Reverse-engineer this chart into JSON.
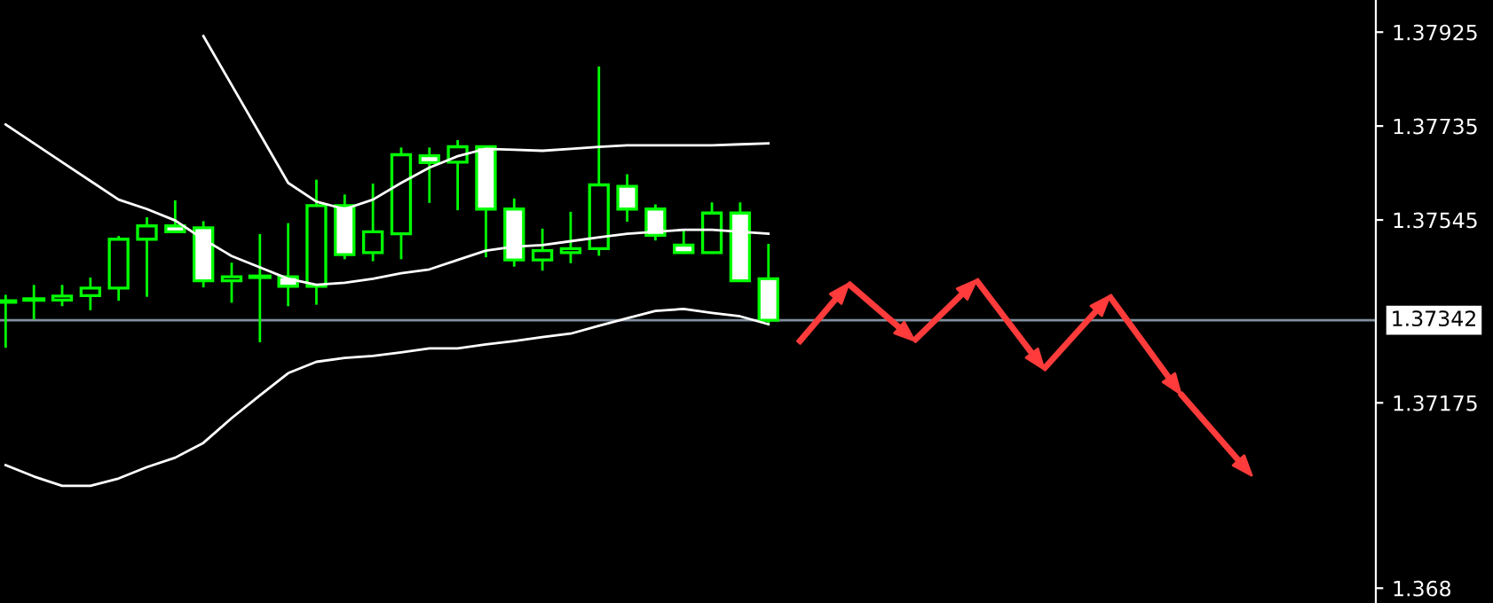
{
  "chart_data": {
    "type": "candlestick",
    "categories": [
      null,
      null,
      null,
      null,
      null,
      null,
      null,
      null,
      null,
      null,
      null,
      null,
      null,
      null,
      null,
      null,
      null,
      null,
      null,
      null,
      null,
      null,
      null,
      null,
      null,
      null,
      null,
      null
    ],
    "color": "#00ff00",
    "colors": [
      "#00ff00",
      "#00ff00",
      "#000000",
      "#000000",
      "#000000",
      "#000000",
      "#ffffff",
      "#ffffff",
      "#000000",
      "#00ff00",
      "#ffffff",
      "#000000",
      "#ffffff",
      "#000000",
      "#000000",
      "#ffffff",
      "#000000",
      "#ffffff",
      "#ffffff",
      "#000000",
      "#000000",
      "#000000",
      "#ffffff",
      "#ffffff",
      "#ffffff",
      "#000000",
      "#ffffff",
      "#ffffff"
    ],
    "ohlc": [
      [
        1.3738,
        1.37391,
        1.37289,
        1.3738
      ],
      [
        1.37384,
        1.37411,
        1.37346,
        1.37384
      ],
      [
        1.37383,
        1.37411,
        1.37373,
        1.37391
      ],
      [
        1.37392,
        1.37426,
        1.37365,
        1.37407
      ],
      [
        1.37407,
        1.3751,
        1.37384,
        1.37506
      ],
      [
        1.37506,
        1.37548,
        1.37392,
        1.37533
      ],
      [
        1.37533,
        1.37582,
        1.37521,
        1.37521
      ],
      [
        1.37529,
        1.3754,
        1.37411,
        1.37422
      ],
      [
        1.37422,
        1.37456,
        1.3738,
        1.3743
      ],
      [
        1.3743,
        1.37514,
        1.373,
        1.3743
      ],
      [
        1.3743,
        1.37536,
        1.37373,
        1.37411
      ],
      [
        1.37411,
        1.37624,
        1.37376,
        1.37574
      ],
      [
        1.37574,
        1.37594,
        1.37468,
        1.37475
      ],
      [
        1.37479,
        1.37616,
        1.37464,
        1.37521
      ],
      [
        1.37517,
        1.37689,
        1.37468,
        1.37677
      ],
      [
        1.37675,
        1.37689,
        1.37582,
        1.37661
      ],
      [
        1.37662,
        1.37704,
        1.37567,
        1.37693
      ],
      [
        1.37693,
        1.37693,
        1.37472,
        1.37567
      ],
      [
        1.37567,
        1.37586,
        1.37453,
        1.37464
      ],
      [
        1.37464,
        1.37525,
        1.37445,
        1.37483
      ],
      [
        1.37479,
        1.37559,
        1.3746,
        1.37487
      ],
      [
        1.37487,
        1.37853,
        1.37475,
        1.37616
      ],
      [
        1.37613,
        1.37635,
        1.37544,
        1.37567
      ],
      [
        1.37567,
        1.37574,
        1.37506,
        1.37514
      ],
      [
        1.37494,
        1.37521,
        1.37479,
        1.37479
      ],
      [
        1.37479,
        1.37578,
        1.37479,
        1.37559
      ],
      [
        1.37559,
        1.37578,
        1.37422,
        1.37422
      ],
      [
        1.37426,
        1.37494,
        1.37334,
        1.37342
      ]
    ],
    "series": [
      {
        "type": "line",
        "color": "#ffffff",
        "values": [
          null,
          null,
          null,
          null,
          null,
          null,
          null,
          1.37917,
          1.37818,
          1.37719,
          1.3762,
          1.37582,
          1.37567,
          1.37586,
          1.3762,
          1.37651,
          1.37674,
          1.37689,
          1.37687,
          1.37685,
          1.37689,
          1.37693,
          1.37696,
          1.37696,
          1.37696,
          1.37696,
          1.37698,
          1.377
        ]
      },
      {
        "type": "line",
        "color": "#ffffff",
        "values": [
          1.37738,
          1.377,
          1.37662,
          1.37624,
          1.37586,
          1.37567,
          1.37544,
          1.37506,
          1.37472,
          1.37449,
          1.37426,
          1.37414,
          1.37418,
          1.37426,
          1.37437,
          1.37445,
          1.37464,
          1.37483,
          1.37491,
          1.37494,
          1.37502,
          1.3751,
          1.37517,
          1.37521,
          1.37525,
          1.37525,
          1.37521,
          1.37517
        ]
      },
      {
        "type": "line",
        "color": "#ffffff",
        "values": [
          1.37049,
          1.37026,
          1.37007,
          1.37007,
          1.37022,
          1.37045,
          1.37064,
          1.37094,
          1.37144,
          1.3719,
          1.37235,
          1.37258,
          1.37266,
          1.3727,
          1.37277,
          1.37285,
          1.37285,
          1.37293,
          1.373,
          1.37308,
          1.37315,
          1.37331,
          1.37346,
          1.37361,
          1.37365,
          1.37357,
          1.3735,
          1.37334
        ]
      }
    ],
    "ylim": [
      1.3677,
      1.3799
    ],
    "yticks": [
      1.37925,
      1.37735,
      1.37545,
      1.37175,
      1.368
    ],
    "ref_lines": [
      {
        "axis": "y",
        "value": 1.37342,
        "label": "1.37342",
        "color": "#8090a0"
      }
    ],
    "grid": false,
    "legend": false
  }
}
